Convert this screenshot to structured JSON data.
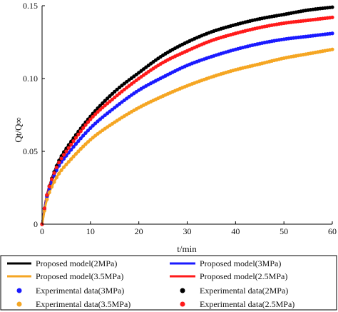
{
  "chart_data": {
    "type": "line",
    "title": "",
    "xlabel": "t/min",
    "ylabel": "Qt/Q∞",
    "xlim": [
      0,
      60
    ],
    "ylim": [
      0,
      0.15
    ],
    "x_ticks": [
      0,
      10,
      20,
      30,
      40,
      50,
      60
    ],
    "y_ticks": [
      0,
      0.05,
      0.1,
      0.15
    ],
    "x_tick_labels": [
      "0",
      "10",
      "20",
      "30",
      "40",
      "50",
      "60"
    ],
    "y_tick_labels": [
      "0",
      "0.05",
      "0.10",
      "0.15"
    ],
    "grid": false,
    "legend_position": "bottom",
    "x": [
      0,
      1,
      3,
      5,
      10,
      15,
      20,
      25,
      30,
      35,
      40,
      45,
      50,
      55,
      60
    ],
    "series": [
      {
        "name": "Proposed model(2MPa)",
        "kind": "line",
        "color": "#000000",
        "values": [
          0,
          0.02,
          0.04,
          0.052,
          0.074,
          0.091,
          0.104,
          0.116,
          0.125,
          0.132,
          0.137,
          0.141,
          0.144,
          0.147,
          0.149
        ]
      },
      {
        "name": "Proposed model(3MPa)",
        "kind": "line",
        "color": "#1a1aff",
        "values": [
          0,
          0.019,
          0.037,
          0.047,
          0.066,
          0.08,
          0.092,
          0.101,
          0.109,
          0.115,
          0.12,
          0.124,
          0.127,
          0.129,
          0.131
        ]
      },
      {
        "name": "Proposed model(3.5MPa)",
        "kind": "line",
        "color": "#f5a623",
        "values": [
          0,
          0.017,
          0.032,
          0.041,
          0.058,
          0.07,
          0.08,
          0.088,
          0.095,
          0.101,
          0.106,
          0.11,
          0.114,
          0.117,
          0.12
        ]
      },
      {
        "name": "Proposed model(2.5MPa)",
        "kind": "line",
        "color": "#ff1a1a",
        "values": [
          0,
          0.02,
          0.039,
          0.05,
          0.072,
          0.087,
          0.1,
          0.111,
          0.119,
          0.126,
          0.131,
          0.135,
          0.138,
          0.14,
          0.142
        ]
      },
      {
        "name": "Experimental data(3MPa)",
        "kind": "scatter",
        "color": "#1a1aff",
        "values": [
          0,
          0.019,
          0.037,
          0.047,
          0.066,
          0.08,
          0.092,
          0.101,
          0.109,
          0.115,
          0.12,
          0.124,
          0.127,
          0.129,
          0.131
        ]
      },
      {
        "name": "Experimental data(2MPa)",
        "kind": "scatter",
        "color": "#000000",
        "values": [
          0,
          0.02,
          0.04,
          0.052,
          0.074,
          0.091,
          0.104,
          0.116,
          0.125,
          0.132,
          0.137,
          0.141,
          0.144,
          0.147,
          0.149
        ]
      },
      {
        "name": "Experimental data(3.5MPa)",
        "kind": "scatter",
        "color": "#f5a623",
        "values": [
          0,
          0.017,
          0.032,
          0.041,
          0.058,
          0.07,
          0.08,
          0.088,
          0.095,
          0.101,
          0.106,
          0.11,
          0.114,
          0.117,
          0.12
        ]
      },
      {
        "name": "Experimental data(2.5MPa)",
        "kind": "scatter",
        "color": "#ff1a1a",
        "values": [
          0,
          0.02,
          0.039,
          0.05,
          0.072,
          0.087,
          0.1,
          0.111,
          0.119,
          0.126,
          0.131,
          0.135,
          0.138,
          0.14,
          0.142
        ]
      }
    ]
  }
}
